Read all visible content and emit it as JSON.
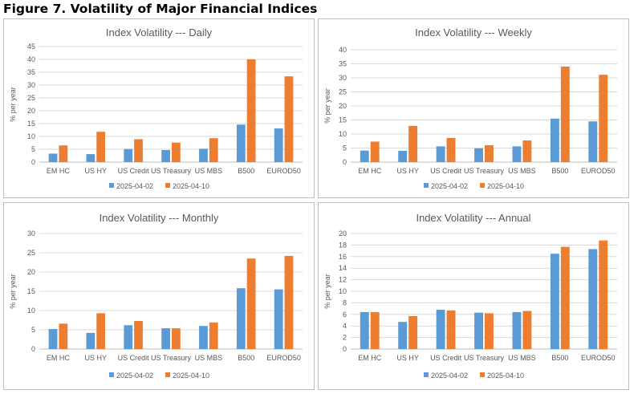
{
  "figure_title": "Figure 7. Volatility of Major Financial Indices",
  "colors": {
    "series1": "#5B9BD5",
    "series2": "#ED7D31",
    "grid": "#d9d9d9",
    "axis": "#bfbfbf",
    "text": "#595959"
  },
  "chart_data": [
    {
      "type": "bar",
      "title": "Index Volatility --- Daily",
      "xlabel": "",
      "ylabel": "% per year",
      "ylim": [
        0,
        45
      ],
      "yticks": [
        0,
        5,
        10,
        15,
        20,
        25,
        30,
        35,
        40,
        45
      ],
      "categories": [
        "EM HC",
        "US HY",
        "US Credit",
        "US Treasury",
        "US MBS",
        "B500",
        "EUROD50"
      ],
      "series": [
        {
          "name": "2025-04-02",
          "values": [
            3.3,
            3.1,
            5.1,
            4.7,
            5.2,
            14.6,
            13.1
          ]
        },
        {
          "name": "2025-04-10",
          "values": [
            6.5,
            11.8,
            8.9,
            7.6,
            9.3,
            40.0,
            33.4
          ]
        }
      ]
    },
    {
      "type": "bar",
      "title": "Index Volatility --- Weekly",
      "xlabel": "",
      "ylabel": "% per year",
      "ylim": [
        0,
        40
      ],
      "yticks": [
        0,
        5,
        10,
        15,
        20,
        25,
        30,
        35,
        40
      ],
      "categories": [
        "EM HC",
        "US HY",
        "US Credit",
        "US Treasury",
        "US MBS",
        "B500",
        "EUROD50"
      ],
      "series": [
        {
          "name": "2025-04-02",
          "values": [
            4.1,
            4.0,
            5.6,
            4.9,
            5.6,
            15.5,
            14.5
          ]
        },
        {
          "name": "2025-04-10",
          "values": [
            7.3,
            12.9,
            8.6,
            6.0,
            7.7,
            34.0,
            31.1
          ]
        }
      ]
    },
    {
      "type": "bar",
      "title": "Index Volatility --- Monthly",
      "xlabel": "",
      "ylabel": "% per year",
      "ylim": [
        0,
        30
      ],
      "yticks": [
        0,
        5,
        10,
        15,
        20,
        25,
        30
      ],
      "categories": [
        "EM HC",
        "US HY",
        "US Credit",
        "US Treasury",
        "US MBS",
        "B500",
        "EUROD50"
      ],
      "series": [
        {
          "name": "2025-04-02",
          "values": [
            5.2,
            4.2,
            6.2,
            5.4,
            6.0,
            15.8,
            15.5
          ]
        },
        {
          "name": "2025-04-10",
          "values": [
            6.6,
            9.3,
            7.3,
            5.4,
            6.9,
            23.5,
            24.2
          ]
        }
      ]
    },
    {
      "type": "bar",
      "title": "Index Volatility --- Annual",
      "xlabel": "",
      "ylabel": "% per year",
      "ylim": [
        0,
        20
      ],
      "yticks": [
        0,
        2,
        4,
        6,
        8,
        10,
        12,
        14,
        16,
        18,
        20
      ],
      "categories": [
        "EM HC",
        "US HY",
        "US Credit",
        "US Treasury",
        "US MBS",
        "B500",
        "EUROD50"
      ],
      "series": [
        {
          "name": "2025-04-02",
          "values": [
            6.4,
            4.7,
            6.8,
            6.3,
            6.4,
            16.5,
            17.3
          ]
        },
        {
          "name": "2025-04-10",
          "values": [
            6.4,
            5.7,
            6.7,
            6.2,
            6.6,
            17.7,
            18.8
          ]
        }
      ]
    }
  ]
}
